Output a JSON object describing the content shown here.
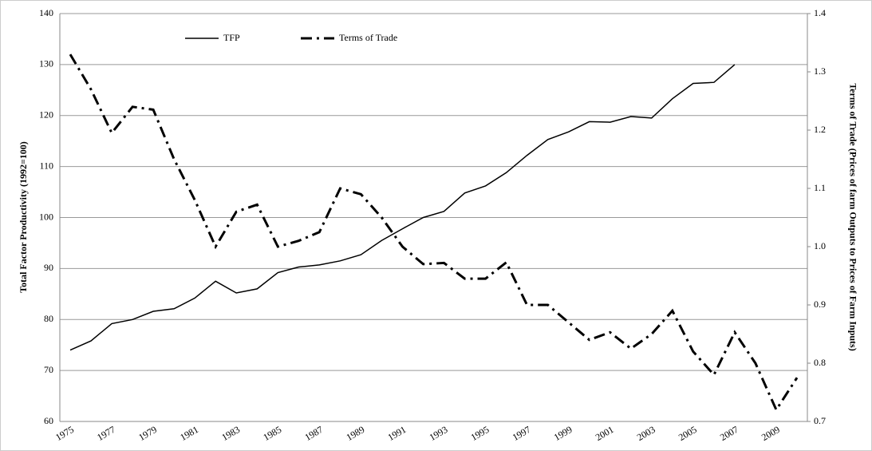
{
  "chart_data": {
    "type": "line",
    "y_label": "Total Factor Productivity (1992=100)",
    "y2_label": "Terms of Trade (Prices of farm Outputs to Prices of Farm Inputs)",
    "categories": [
      "1975",
      null,
      "1977",
      null,
      "1979",
      null,
      "1981",
      null,
      "1983",
      null,
      "1985",
      null,
      "1987",
      null,
      "1989",
      null,
      "1991",
      null,
      "1993",
      null,
      "1995",
      null,
      "1997",
      null,
      "1999",
      null,
      "2001",
      null,
      "2003",
      null,
      "2005",
      null,
      "2007",
      null,
      "2009",
      null
    ],
    "series": [
      {
        "name": "TFP",
        "color": "#000000",
        "dash": "solid",
        "values": [
          74,
          75.8,
          79.2,
          80,
          81.6,
          82.1,
          84.2,
          87.5,
          85.2,
          86,
          89.2,
          90.3,
          90.7,
          91.5,
          92.7,
          95.5,
          97.8,
          100,
          101.2,
          104.8,
          106.2,
          108.8,
          112.2,
          115.3,
          116.8,
          118.8,
          118.7,
          119.8,
          119.5,
          123.3,
          126.3,
          126.5,
          130,
          null,
          null,
          null
        ]
      },
      {
        "name": "Terms of Trade",
        "color": "#000000",
        "dash": "dashdot",
        "axis": "y2",
        "values": [
          1.33,
          1.27,
          1.195,
          1.24,
          1.235,
          1.15,
          1.08,
          1.0,
          1.06,
          1.072,
          1.0,
          1.01,
          1.025,
          1.1,
          1.09,
          1.05,
          1.0,
          0.97,
          0.972,
          0.945,
          0.945,
          0.973,
          0.9,
          0.9,
          0.87,
          0.84,
          0.853,
          0.825,
          0.85,
          0.89,
          0.82,
          0.78,
          0.853,
          0.8,
          0.72,
          0.775
        ]
      }
    ],
    "ylim": [
      60,
      140
    ],
    "yticks": [
      60,
      70,
      80,
      90,
      100,
      110,
      120,
      130,
      140
    ],
    "y2lim": [
      0.7,
      1.4
    ],
    "y2ticks": [
      0.7,
      0.8,
      0.9,
      {
        "value": 1,
        "label": "1.0"
      },
      1.1,
      1.2,
      1.3,
      1.4
    ],
    "grid": true,
    "legend": "top-left"
  }
}
